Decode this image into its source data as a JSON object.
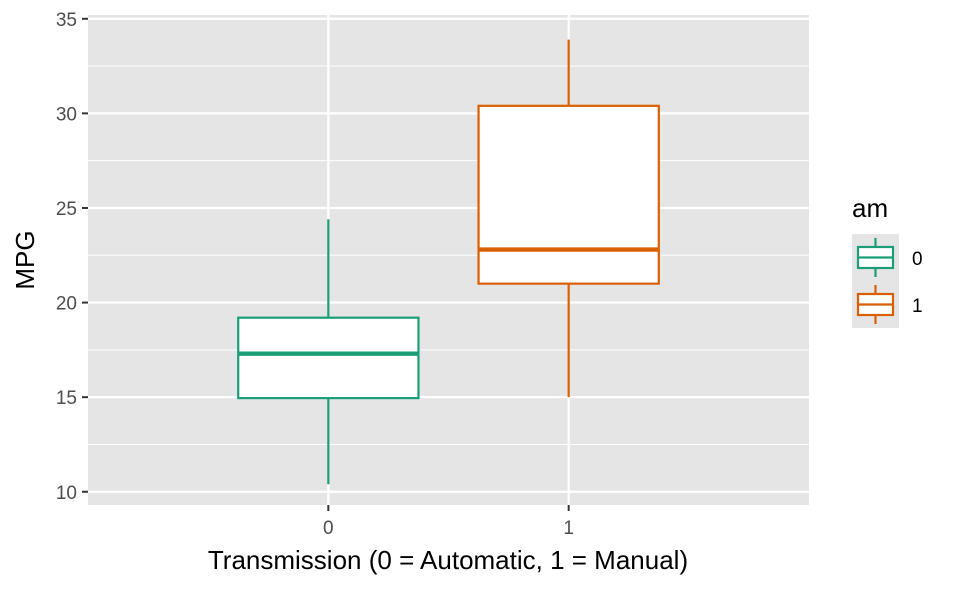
{
  "chart_data": {
    "type": "box",
    "title": "",
    "xlabel": "Transmission (0 = Automatic, 1 = Manual)",
    "ylabel": "MPG",
    "categories": [
      "0",
      "1"
    ],
    "ylim": [
      9.3,
      35.2
    ],
    "yticks": [
      10,
      15,
      20,
      25,
      30,
      35
    ],
    "grid": true,
    "boxes": [
      {
        "category": "0",
        "min": 10.4,
        "q1": 14.95,
        "median": 17.3,
        "q3": 19.2,
        "max": 24.4,
        "color": "#1b9e77"
      },
      {
        "category": "1",
        "min": 15.0,
        "q1": 21.0,
        "median": 22.8,
        "q3": 30.4,
        "max": 33.9,
        "color": "#d95f02"
      }
    ],
    "legend": {
      "title": "am",
      "position": "right",
      "items": [
        {
          "label": "0",
          "color": "#1b9e77"
        },
        {
          "label": "1",
          "color": "#d95f02"
        }
      ]
    },
    "panel_background": "#e5e5e5",
    "grid_color": "#ffffff"
  }
}
